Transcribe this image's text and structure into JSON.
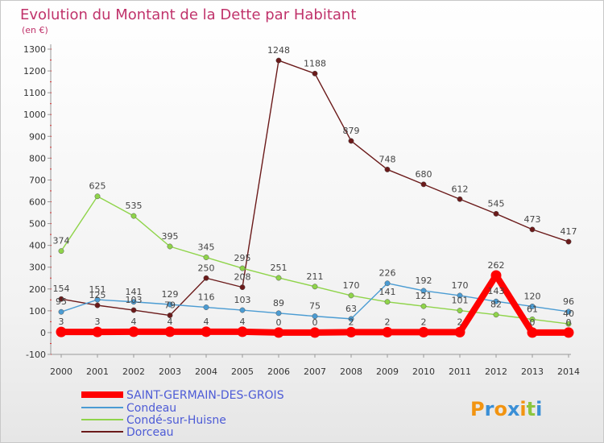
{
  "title": "Evolution du Montant de la Dette par Habitant",
  "subtitle": "(en €)",
  "logo_text": "Proxiti",
  "chart_data": {
    "type": "line",
    "title": "Evolution du Montant de la Dette par Habitant",
    "ylabel": "(en €)",
    "xlabel": "",
    "categories": [
      "2000",
      "2001",
      "2002",
      "2003",
      "2004",
      "2005",
      "2006",
      "2007",
      "2008",
      "2009",
      "2010",
      "2011",
      "2012",
      "2013",
      "2014"
    ],
    "ylim": [
      -100,
      1300
    ],
    "yticks": [
      -100,
      0,
      100,
      200,
      300,
      400,
      500,
      600,
      700,
      800,
      900,
      1000,
      1100,
      1200,
      1300
    ],
    "grid": false,
    "legend_position": "bottom-left",
    "series": [
      {
        "name": "SAINT-GERMAIN-DES-GROIS",
        "color": "#ff0000",
        "values": [
          3,
          3,
          4,
          4,
          4,
          4,
          0,
          0,
          2,
          2,
          2,
          2,
          262,
          0,
          0
        ]
      },
      {
        "name": "Condeau",
        "color": "#4b9cd3",
        "values": [
          95,
          151,
          141,
          129,
          116,
          103,
          89,
          75,
          63,
          226,
          192,
          170,
          143,
          120,
          96
        ]
      },
      {
        "name": "Condé-sur-Huisne",
        "color": "#8fd44a",
        "values": [
          374,
          625,
          535,
          395,
          345,
          295,
          251,
          211,
          170,
          141,
          121,
          101,
          82,
          61,
          40
        ]
      },
      {
        "name": "Dorceau",
        "color": "#6b1a1a",
        "values": [
          154,
          125,
          103,
          79,
          250,
          208,
          1248,
          1188,
          879,
          748,
          680,
          612,
          545,
          473,
          417
        ]
      }
    ]
  }
}
